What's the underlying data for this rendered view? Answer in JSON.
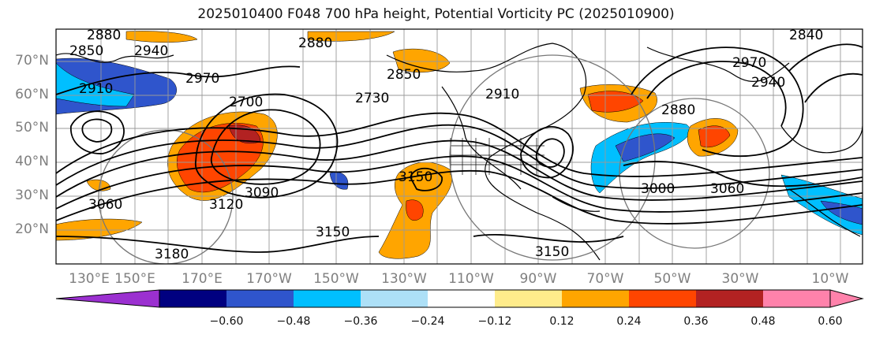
{
  "title": "2025010400 F048 700 hPa height, Potential Vorticity PC (2025010900)",
  "latitude_labels": [
    "70°N",
    "60°N",
    "50°N",
    "40°N",
    "30°N",
    "20°N"
  ],
  "longitude_labels": [
    "130°E",
    "150°E",
    "170°E",
    "170°W",
    "150°W",
    "130°W",
    "110°W",
    "90°W",
    "70°W",
    "50°W",
    "30°W",
    "10°W"
  ],
  "contour_labels": [
    "2850",
    "2880",
    "2940",
    "2910",
    "2970",
    "2880",
    "2700",
    "2730",
    "2850",
    "2910",
    "2970",
    "2940",
    "2880",
    "3060",
    "3090",
    "3120",
    "3150",
    "3180",
    "3150",
    "3150",
    "3000",
    "3060",
    "2840"
  ],
  "colorbar": {
    "tick_labels": [
      "−0.60",
      "−0.48",
      "−0.36",
      "−0.24",
      "−0.12",
      "0.12",
      "0.24",
      "0.36",
      "0.48",
      "0.60"
    ],
    "low_extend_color": "#9b30d0",
    "colors": [
      "#000080",
      "#2f55cc",
      "#00bfff",
      "#ade0f7",
      "#ffffff",
      "#ffec8b",
      "#ffa500",
      "#ff4500",
      "#b22222",
      "#ff82ab"
    ],
    "high_extend_color": "#ff82ab"
  },
  "shading_colors": {
    "orange": "#ffa500",
    "red_orange": "#ff4500",
    "dark_red": "#b22222",
    "blue": "#2f55cc",
    "sky_blue": "#00bfff",
    "light_blue": "#ade0f7"
  }
}
